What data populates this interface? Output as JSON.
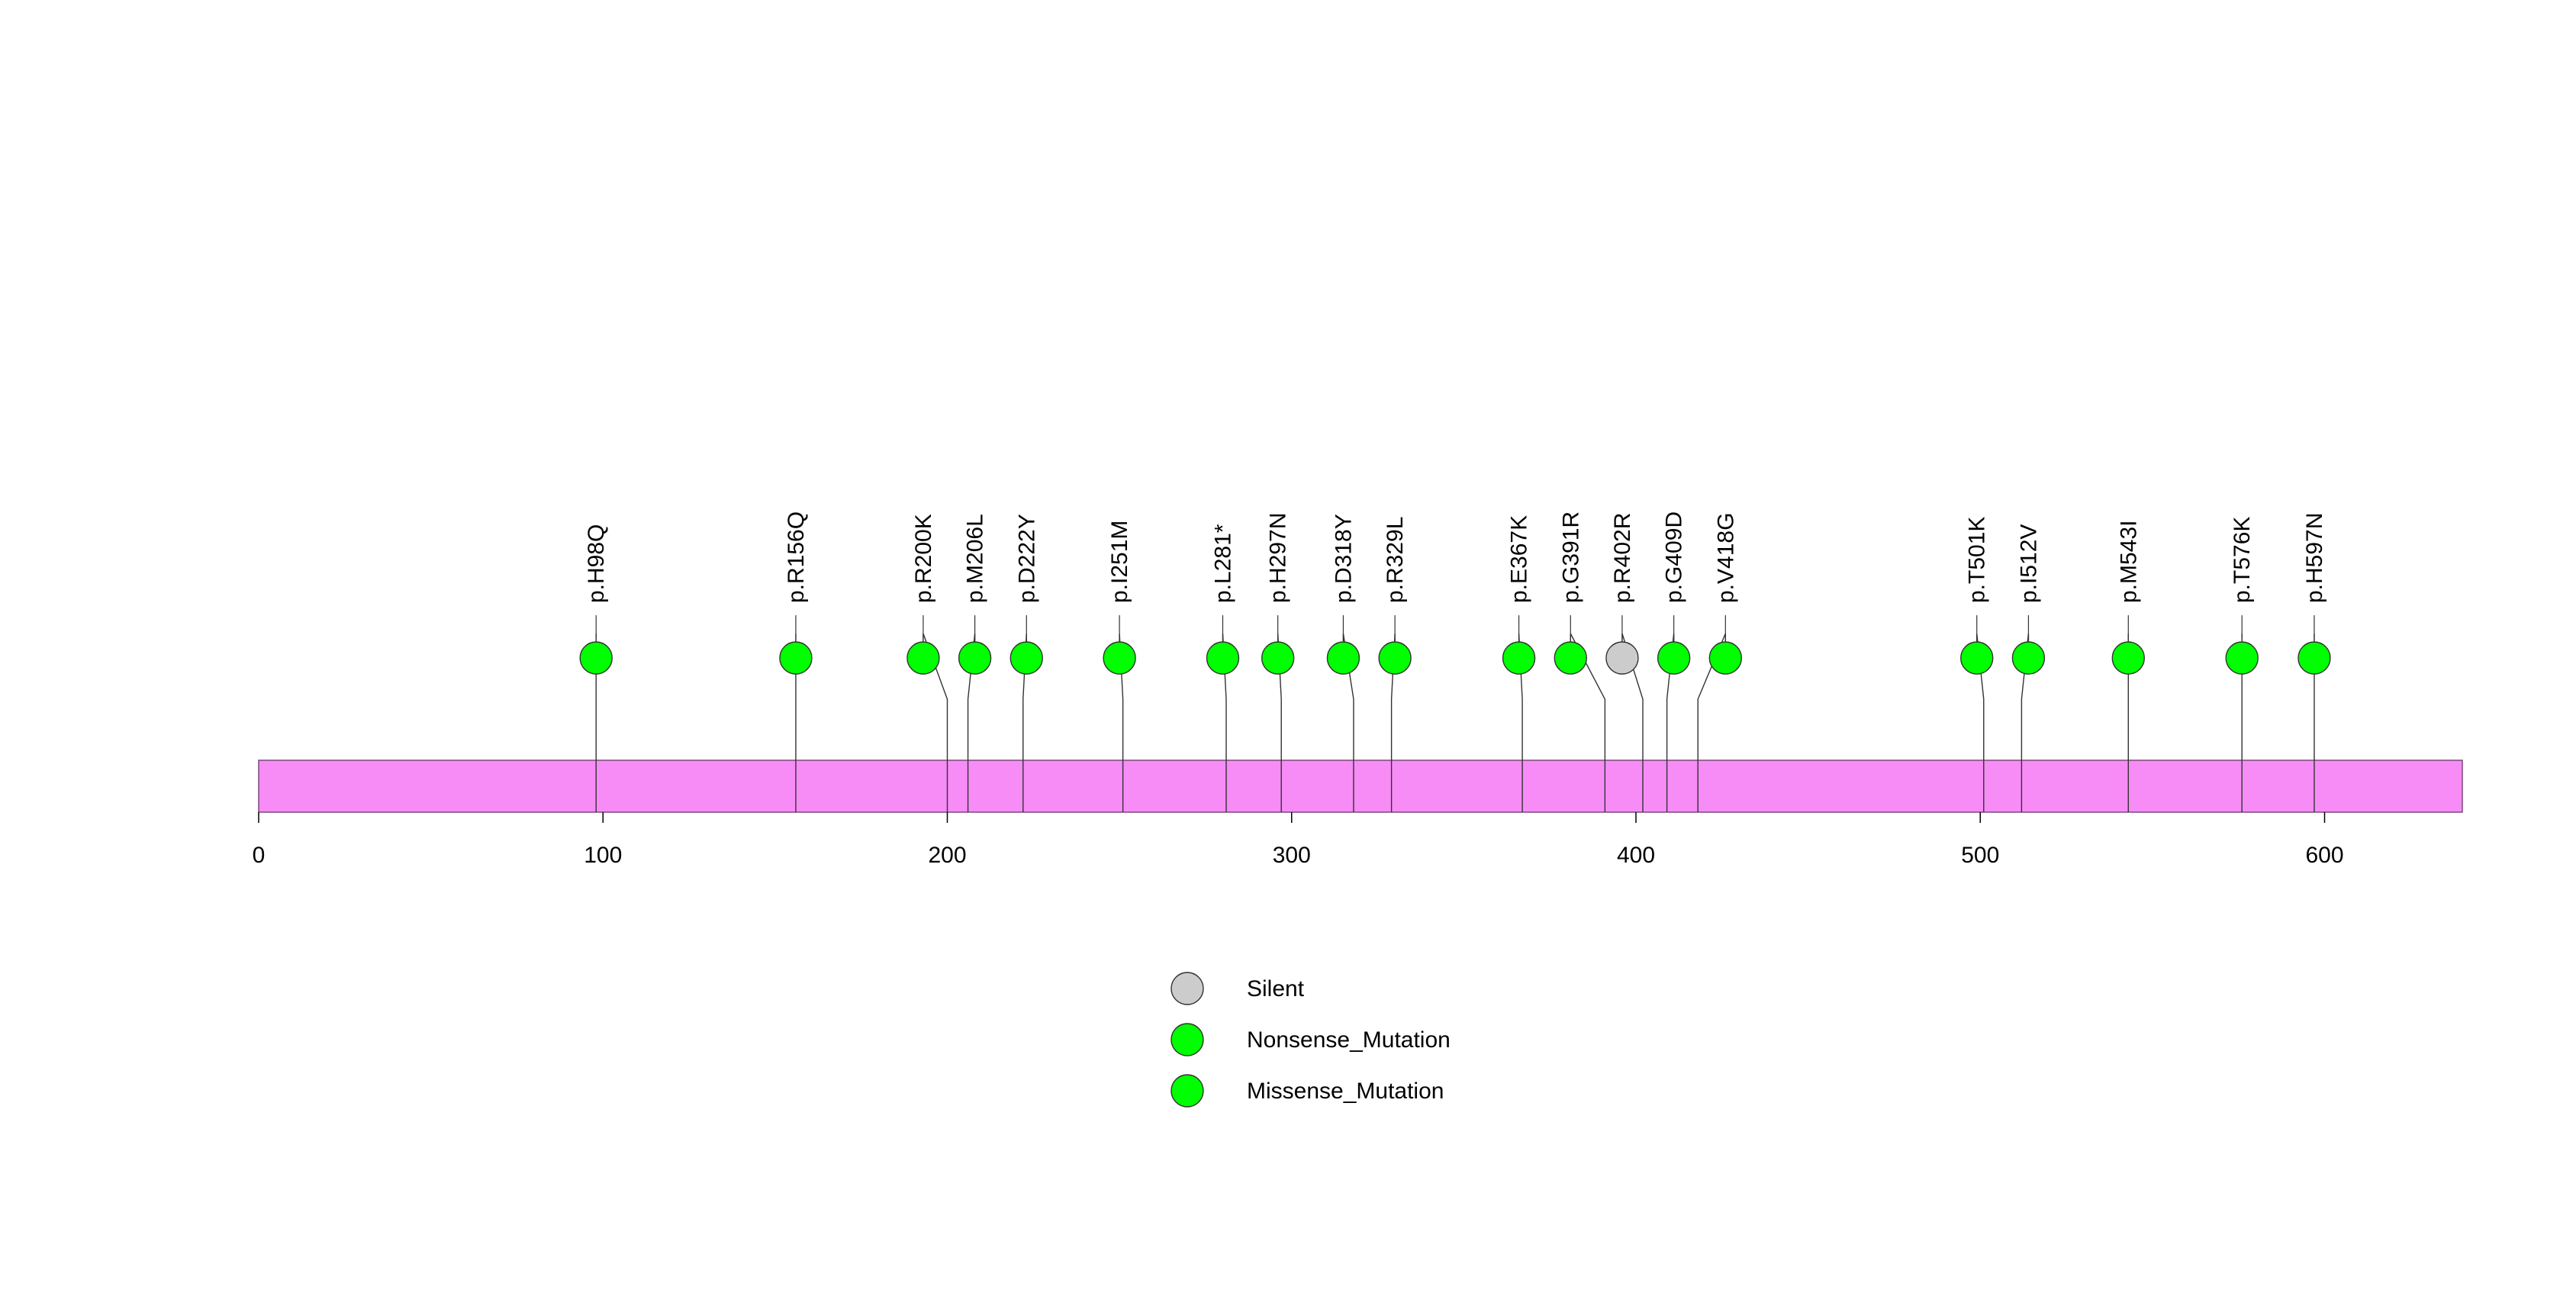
{
  "chart_data": {
    "type": "lollipop",
    "title": "",
    "xlabel": "",
    "ylabel": "",
    "xlim": [
      0,
      640
    ],
    "x_ticks": [
      0,
      100,
      200,
      300,
      400,
      500,
      600
    ],
    "protein_bar_color": "#f78cf7",
    "mutations": [
      {
        "label": "p.H98Q",
        "position": 98,
        "display_position": 98,
        "type": "Missense_Mutation"
      },
      {
        "label": "p.R156Q",
        "position": 156,
        "display_position": 156,
        "type": "Missense_Mutation"
      },
      {
        "label": "p.R200K",
        "position": 200,
        "display_position": 193,
        "type": "Missense_Mutation"
      },
      {
        "label": "p.M206L",
        "position": 206,
        "display_position": 208,
        "type": "Missense_Mutation"
      },
      {
        "label": "p.D222Y",
        "position": 222,
        "display_position": 223,
        "type": "Missense_Mutation"
      },
      {
        "label": "p.I251M",
        "position": 251,
        "display_position": 250,
        "type": "Missense_Mutation"
      },
      {
        "label": "p.L281*",
        "position": 281,
        "display_position": 280,
        "type": "Nonsense_Mutation"
      },
      {
        "label": "p.H297N",
        "position": 297,
        "display_position": 296,
        "type": "Missense_Mutation"
      },
      {
        "label": "p.D318Y",
        "position": 318,
        "display_position": 315,
        "type": "Missense_Mutation"
      },
      {
        "label": "p.R329L",
        "position": 329,
        "display_position": 330,
        "type": "Missense_Mutation"
      },
      {
        "label": "p.E367K",
        "position": 367,
        "display_position": 366,
        "type": "Missense_Mutation"
      },
      {
        "label": "p.G391R",
        "position": 391,
        "display_position": 381,
        "type": "Missense_Mutation"
      },
      {
        "label": "p.R402R",
        "position": 402,
        "display_position": 396,
        "type": "Silent"
      },
      {
        "label": "p.G409D",
        "position": 409,
        "display_position": 411,
        "type": "Missense_Mutation"
      },
      {
        "label": "p.V418G",
        "position": 418,
        "display_position": 426,
        "type": "Missense_Mutation"
      },
      {
        "label": "p.T501K",
        "position": 501,
        "display_position": 499,
        "type": "Missense_Mutation"
      },
      {
        "label": "p.I512V",
        "position": 512,
        "display_position": 514,
        "type": "Missense_Mutation"
      },
      {
        "label": "p.M543I",
        "position": 543,
        "display_position": 543,
        "type": "Missense_Mutation"
      },
      {
        "label": "p.T576K",
        "position": 576,
        "display_position": 576,
        "type": "Missense_Mutation"
      },
      {
        "label": "p.H597N",
        "position": 597,
        "display_position": 597,
        "type": "Missense_Mutation"
      }
    ],
    "legend": {
      "placement": "bottom-center",
      "entries": [
        {
          "label": "Silent",
          "color": "#cccccc"
        },
        {
          "label": "Nonsense_Mutation",
          "color": "#00ff00"
        },
        {
          "label": "Missense_Mutation",
          "color": "#00ff00"
        }
      ]
    },
    "type_colors": {
      "Silent": "#cccccc",
      "Nonsense_Mutation": "#00ff00",
      "Missense_Mutation": "#00ff00"
    }
  }
}
